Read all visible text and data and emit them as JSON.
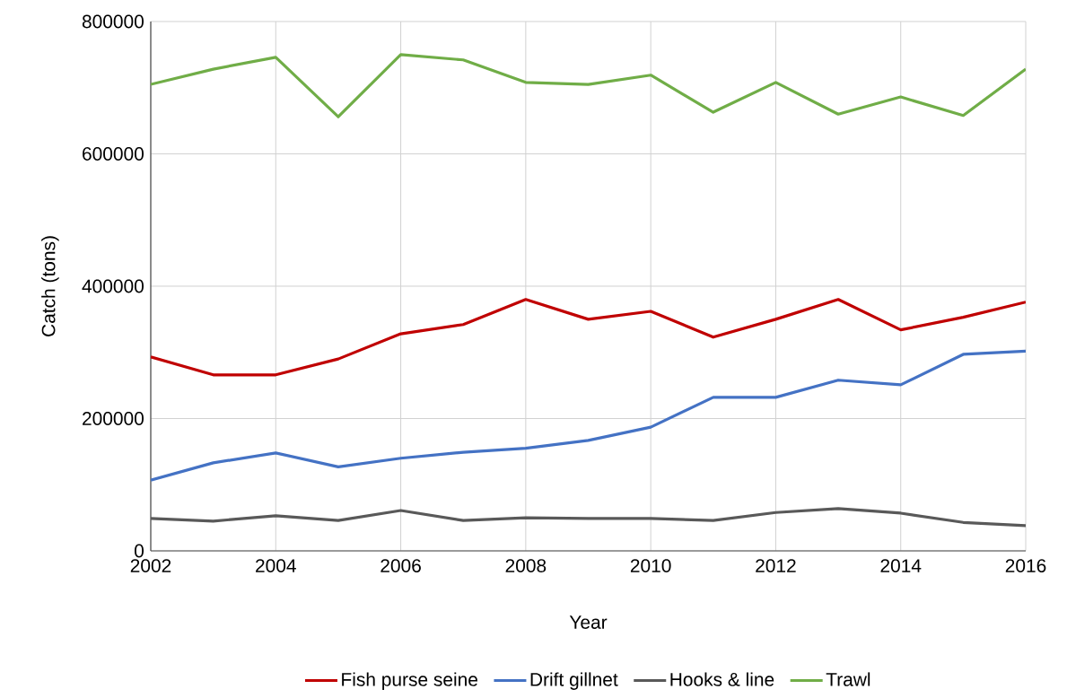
{
  "chart_data": {
    "type": "line",
    "xlabel": "Year",
    "ylabel": "Catch (tons)",
    "x": [
      2002,
      2003,
      2004,
      2005,
      2006,
      2007,
      2008,
      2009,
      2010,
      2011,
      2012,
      2013,
      2014,
      2015,
      2016
    ],
    "xlim": [
      2002,
      2016
    ],
    "xticks": [
      2002,
      2004,
      2006,
      2008,
      2010,
      2012,
      2014,
      2016
    ],
    "ylim": [
      0,
      800000
    ],
    "yticks": [
      0,
      200000,
      400000,
      600000,
      800000
    ],
    "grid": true,
    "legend": "bottom",
    "marker": "none",
    "line_style": "solid",
    "series": [
      {
        "name": "Fish purse seine",
        "color": "#c00000",
        "values": [
          293000,
          266000,
          266000,
          290000,
          328000,
          342000,
          380000,
          350000,
          362000,
          323000,
          350000,
          380000,
          334000,
          353000,
          376000
        ]
      },
      {
        "name": "Drift gillnet",
        "color": "#4472c4",
        "values": [
          107000,
          133000,
          148000,
          127000,
          140000,
          149000,
          155000,
          167000,
          187000,
          232000,
          232000,
          258000,
          251000,
          297000,
          302000
        ]
      },
      {
        "name": "Hooks & line",
        "color": "#595959",
        "values": [
          49000,
          45000,
          53000,
          46000,
          61000,
          46000,
          50000,
          49000,
          49000,
          46000,
          58000,
          64000,
          57000,
          43000,
          38000
        ]
      },
      {
        "name": "Trawl",
        "color": "#70ad47",
        "values": [
          705000,
          728000,
          746000,
          656000,
          750000,
          742000,
          708000,
          705000,
          719000,
          663000,
          708000,
          660000,
          686000,
          658000,
          728000
        ]
      }
    ]
  }
}
